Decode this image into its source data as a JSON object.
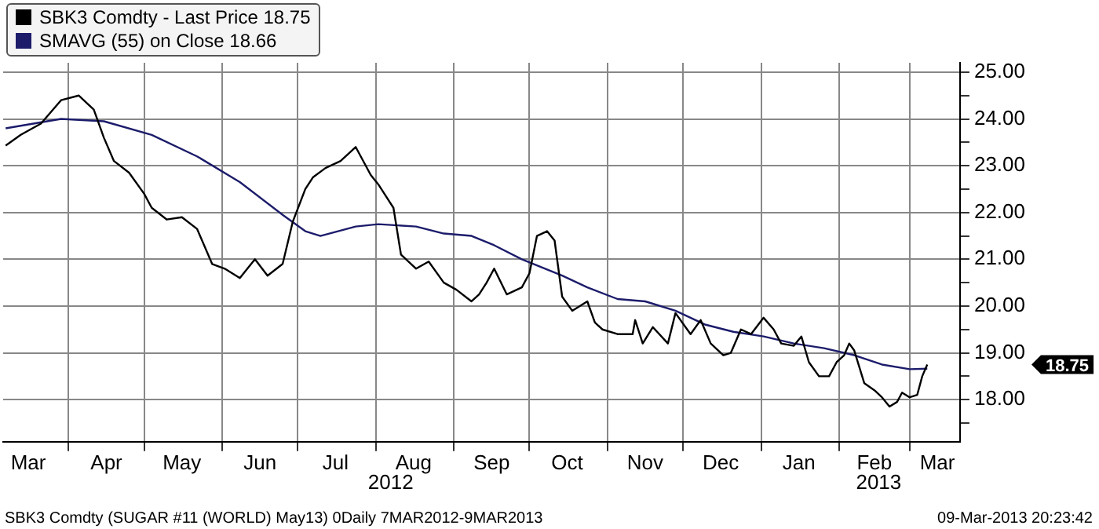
{
  "chart_data": {
    "type": "line",
    "legend": "top left",
    "marker": "none",
    "grid": true,
    "xlim": [
      "2012-03-06",
      "2013-03-21"
    ],
    "xticks": [
      {
        "value": "2012-04-01",
        "label": null
      },
      {
        "value": "2012-05-01",
        "label": null
      },
      {
        "value": "2012-06-01",
        "label": null
      },
      {
        "value": "2012-07-01",
        "label": null
      },
      {
        "value": "2012-08-01",
        "label": null
      },
      {
        "value": "2012-09-01",
        "label": null
      },
      {
        "value": "2012-10-01",
        "label": null
      },
      {
        "value": "2012-11-01",
        "label": null
      },
      {
        "value": "2012-12-01",
        "label": null
      },
      {
        "value": "2013-01-01",
        "label": null
      },
      {
        "value": "2013-02-01",
        "label": null
      },
      {
        "value": "2013-03-01",
        "label": null
      },
      {
        "value": "2012-03-16",
        "label": "Mar"
      },
      {
        "value": "2012-04-16",
        "label": "Apr"
      },
      {
        "value": "2012-05-16",
        "label": "May"
      },
      {
        "value": "2012-06-16",
        "label": "Jun"
      },
      {
        "value": "2012-07-16",
        "label": "Jul"
      },
      {
        "value": "2012-08-16",
        "label": "Aug"
      },
      {
        "value": "2012-09-16",
        "label": "Sep"
      },
      {
        "value": "2012-10-16",
        "label": "Oct"
      },
      {
        "value": "2012-11-16",
        "label": "Nov"
      },
      {
        "value": "2012-12-16",
        "label": "Dec"
      },
      {
        "value": "2013-01-16",
        "label": "Jan"
      },
      {
        "value": "2013-02-15",
        "label": "Feb"
      },
      {
        "value": "2013-03-12",
        "label": "Mar"
      }
    ],
    "ylim": [
      17.1,
      25.2
    ],
    "yticks": [
      {
        "value": 17.5,
        "label": null
      },
      {
        "value": 18,
        "label": "18.00"
      },
      {
        "value": 18.5,
        "label": null
      },
      {
        "value": 19,
        "label": "19.00"
      },
      {
        "value": 19.5,
        "label": null
      },
      {
        "value": 20,
        "label": "20.00"
      },
      {
        "value": 20.5,
        "label": null
      },
      {
        "value": 21,
        "label": "21.00"
      },
      {
        "value": 21.5,
        "label": null
      },
      {
        "value": 22,
        "label": "22.00"
      },
      {
        "value": 22.5,
        "label": null
      },
      {
        "value": 23,
        "label": "23.00"
      },
      {
        "value": 23.5,
        "label": null
      },
      {
        "value": 24,
        "label": "24.00"
      },
      {
        "value": 24.5,
        "label": null
      },
      {
        "value": 25,
        "label": "25.00"
      }
    ],
    "series": [
      {
        "name": "SBK3 Comdty - Last Price 18.75",
        "color": "#000000",
        "x": [
          "2012-03-07",
          "2012-03-13",
          "2012-03-21",
          "2012-03-29",
          "2012-04-05",
          "2012-04-11",
          "2012-04-15",
          "2012-04-19",
          "2012-04-25",
          "2012-05-01",
          "2012-05-04",
          "2012-05-10",
          "2012-05-16",
          "2012-05-22",
          "2012-05-28",
          "2012-06-02",
          "2012-06-08",
          "2012-06-14",
          "2012-06-19",
          "2012-06-25",
          "2012-06-29",
          "2012-07-04",
          "2012-07-07",
          "2012-07-12",
          "2012-07-18",
          "2012-07-24",
          "2012-07-30",
          "2012-08-02",
          "2012-08-08",
          "2012-08-11",
          "2012-08-17",
          "2012-08-22",
          "2012-08-28",
          "2012-09-02",
          "2012-09-08",
          "2012-09-11",
          "2012-09-14",
          "2012-09-17",
          "2012-09-22",
          "2012-09-28",
          "2012-10-01",
          "2012-10-04",
          "2012-10-08",
          "2012-10-11",
          "2012-10-14",
          "2012-10-18",
          "2012-10-24",
          "2012-10-27",
          "2012-10-30",
          "2012-11-05",
          "2012-11-11",
          "2012-11-12",
          "2012-11-15",
          "2012-11-19",
          "2012-11-25",
          "2012-11-28",
          "2012-12-04",
          "2012-12-08",
          "2012-12-12",
          "2012-12-17",
          "2012-12-20",
          "2012-12-24",
          "2012-12-28",
          "2013-01-02",
          "2013-01-06",
          "2013-01-09",
          "2013-01-14",
          "2013-01-17",
          "2013-01-20",
          "2013-01-24",
          "2013-01-28",
          "2013-01-31",
          "2013-02-03",
          "2013-02-05",
          "2013-02-07",
          "2013-02-11",
          "2013-02-15",
          "2013-02-18",
          "2013-02-21",
          "2013-02-24",
          "2013-02-26",
          "2013-03-01",
          "2013-03-04",
          "2013-03-06",
          "2013-03-08"
        ],
        "values": [
          23.43,
          23.66,
          23.9,
          24.4,
          24.5,
          24.2,
          23.6,
          23.1,
          22.85,
          22.4,
          22.1,
          21.85,
          21.9,
          21.65,
          20.9,
          20.8,
          20.6,
          21.0,
          20.65,
          20.9,
          21.8,
          22.5,
          22.75,
          22.95,
          23.1,
          23.4,
          22.8,
          22.6,
          22.1,
          21.1,
          20.8,
          20.95,
          20.5,
          20.35,
          20.1,
          20.25,
          20.5,
          20.8,
          20.25,
          20.4,
          20.7,
          21.5,
          21.6,
          21.4,
          20.2,
          19.9,
          20.1,
          19.65,
          19.5,
          19.4,
          19.4,
          19.7,
          19.2,
          19.55,
          19.2,
          19.85,
          19.4,
          19.7,
          19.2,
          18.95,
          19.0,
          19.5,
          19.4,
          19.75,
          19.5,
          19.2,
          19.15,
          19.35,
          18.8,
          18.5,
          18.5,
          18.8,
          18.95,
          19.2,
          19.05,
          18.35,
          18.2,
          18.05,
          17.85,
          17.95,
          18.15,
          18.05,
          18.1,
          18.5,
          18.75
        ]
      },
      {
        "name": "SMAVG (55) on Close 18.66",
        "color": "#1c1c6b",
        "x": [
          "2012-03-07",
          "2012-03-29",
          "2012-04-15",
          "2012-05-04",
          "2012-05-22",
          "2012-06-08",
          "2012-06-25",
          "2012-07-04",
          "2012-07-10",
          "2012-07-24",
          "2012-08-02",
          "2012-08-17",
          "2012-08-28",
          "2012-09-08",
          "2012-09-17",
          "2012-09-28",
          "2012-10-14",
          "2012-10-24",
          "2012-11-05",
          "2012-11-16",
          "2012-11-28",
          "2012-12-10",
          "2012-12-21",
          "2013-01-02",
          "2013-01-14",
          "2013-01-26",
          "2013-02-07",
          "2013-02-18",
          "2013-03-01",
          "2013-03-08"
        ],
        "values": [
          23.8,
          24.0,
          23.95,
          23.66,
          23.2,
          22.65,
          21.95,
          21.6,
          21.5,
          21.7,
          21.75,
          21.7,
          21.55,
          21.5,
          21.3,
          21.0,
          20.65,
          20.4,
          20.15,
          20.1,
          19.9,
          19.6,
          19.45,
          19.35,
          19.2,
          19.1,
          18.95,
          18.75,
          18.65,
          18.66
        ]
      }
    ],
    "annotations": [
      "18.75",
      "2012",
      "2013",
      "SBK3 Comdty (SUGAR #11 (WORLD) May13) 0Daily 7MAR2012-9MAR2013",
      "09-Mar-2013 20:23:42"
    ]
  }
}
